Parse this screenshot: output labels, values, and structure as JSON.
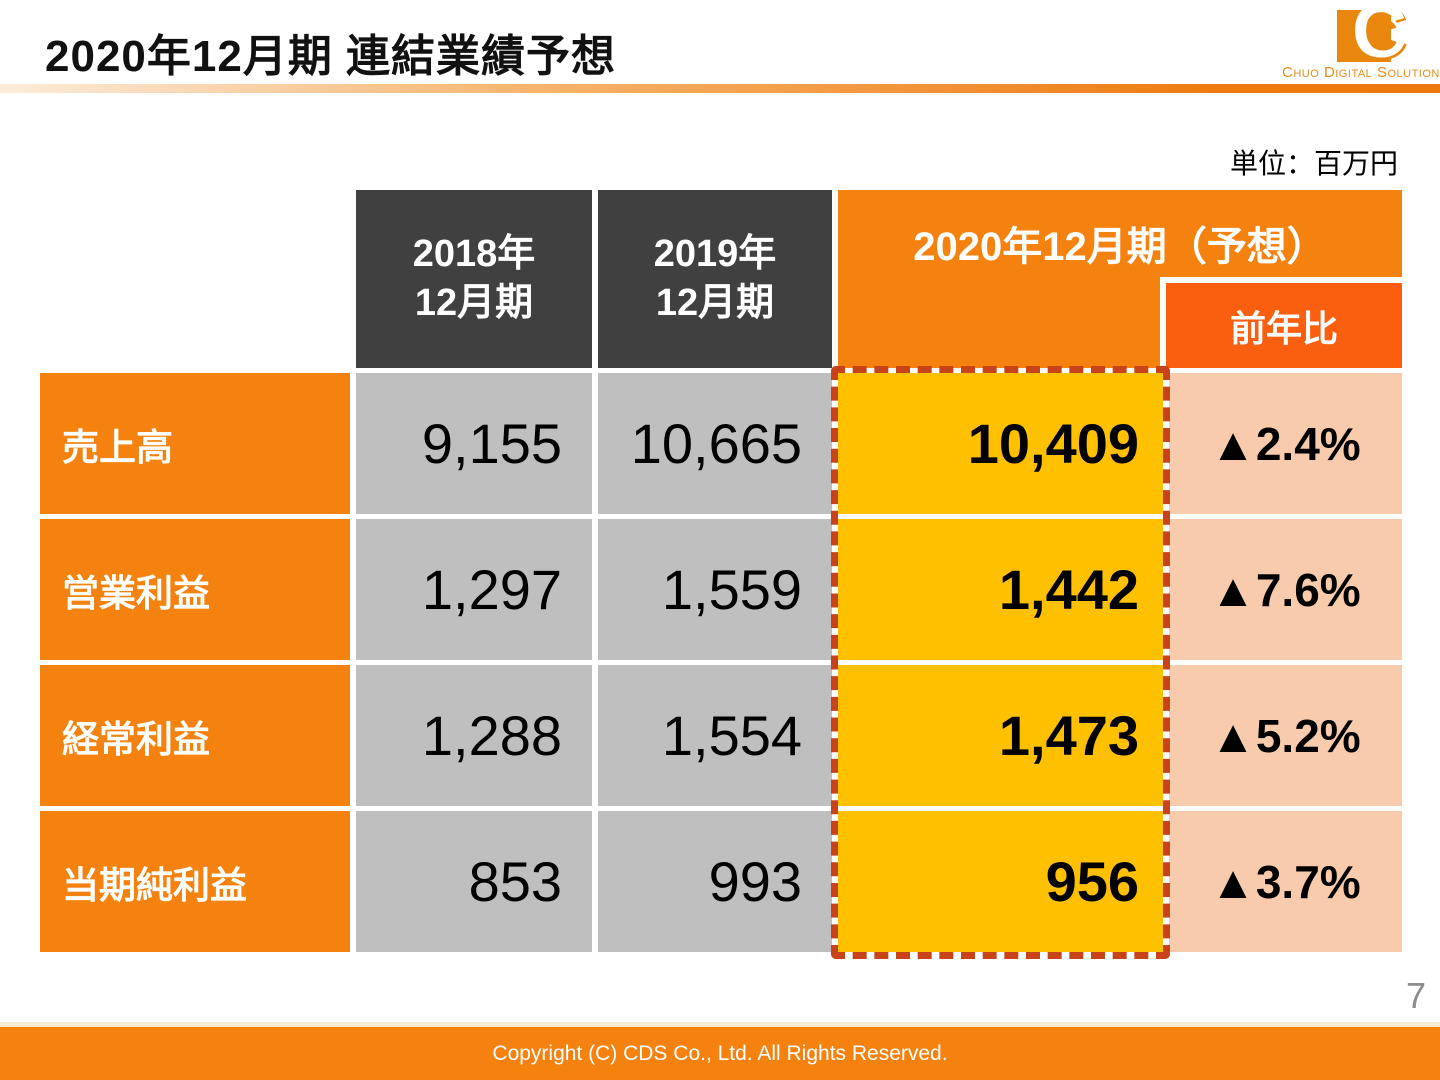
{
  "slide": {
    "title": "2020年12月期 連結業績予想",
    "unit_note": "単位：百万円",
    "page_number": "7",
    "copyright": "Copyright (C)  CDS Co., Ltd. All Rights Reserved."
  },
  "logo": {
    "mark_letter": "C",
    "company_name": "Chuo Digital Solution"
  },
  "chart_data": {
    "type": "table",
    "title": "2020年12月期 連結業績予想",
    "unit": "百万円",
    "columns": [
      "",
      "2018年12月期",
      "2019年12月期",
      "2020年12月期（予想）",
      "前年比"
    ],
    "rows": [
      [
        "売上高",
        9155,
        10665,
        10409,
        "▲2.4%"
      ],
      [
        "営業利益",
        1297,
        1559,
        1442,
        "▲7.6%"
      ],
      [
        "経常利益",
        1288,
        1554,
        1473,
        "▲5.2%"
      ],
      [
        "当期純利益",
        853,
        993,
        956,
        "▲3.7%"
      ]
    ]
  },
  "table": {
    "headers": {
      "fy2018": {
        "line1": "2018年",
        "line2": "12月期"
      },
      "fy2019": {
        "line1": "2019年",
        "line2": "12月期"
      },
      "fy2020": "2020年12月期（予想）",
      "yoy": "前年比"
    },
    "rows": [
      {
        "label": "売上高",
        "fy2018": "9,155",
        "fy2019": "10,665",
        "fy2020": "10,409",
        "yoy": "▲2.4%"
      },
      {
        "label": "営業利益",
        "fy2018": "1,297",
        "fy2019": "1,559",
        "fy2020": "1,442",
        "yoy": "▲7.6%"
      },
      {
        "label": "経常利益",
        "fy2018": "1,288",
        "fy2019": "1,554",
        "fy2020": "1,473",
        "yoy": "▲5.2%"
      },
      {
        "label": "当期純利益",
        "fy2018": "853",
        "fy2019": "993",
        "fy2020": "956",
        "yoy": "▲3.7%"
      }
    ]
  },
  "colors": {
    "main_orange": "#F5810E",
    "accent_orange": "#F95F0F",
    "gold": "#FFC000",
    "peach": "#F8CBAD",
    "gray_cell": "#BFBFBF",
    "dark_header": "#404040",
    "dash_border": "#C8431A",
    "logo_orange": "#E8860D"
  }
}
